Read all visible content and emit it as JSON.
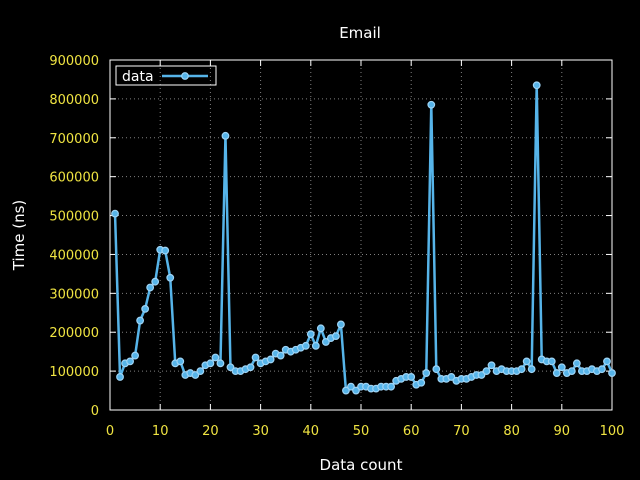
{
  "chart_data": {
    "type": "line",
    "title": "Email",
    "xlabel": "Data count",
    "ylabel": "Time (ns)",
    "xlim": [
      0,
      100
    ],
    "ylim": [
      0,
      900000
    ],
    "x_ticks": [
      0,
      10,
      20,
      30,
      40,
      50,
      60,
      70,
      80,
      90,
      100
    ],
    "y_ticks": [
      0,
      100000,
      200000,
      300000,
      400000,
      500000,
      600000,
      700000,
      800000,
      900000
    ],
    "grid": true,
    "legend_position": "top-left",
    "series": [
      {
        "name": "data",
        "color": "#56b4e9",
        "x": [
          1,
          2,
          3,
          4,
          5,
          6,
          7,
          8,
          9,
          10,
          11,
          12,
          13,
          14,
          15,
          16,
          17,
          18,
          19,
          20,
          21,
          22,
          23,
          24,
          25,
          26,
          27,
          28,
          29,
          30,
          31,
          32,
          33,
          34,
          35,
          36,
          37,
          38,
          39,
          40,
          41,
          42,
          43,
          44,
          45,
          46,
          47,
          48,
          49,
          50,
          51,
          52,
          53,
          54,
          55,
          56,
          57,
          58,
          59,
          60,
          61,
          62,
          63,
          64,
          65,
          66,
          67,
          68,
          69,
          70,
          71,
          72,
          73,
          74,
          75,
          76,
          77,
          78,
          79,
          80,
          81,
          82,
          83,
          84,
          85,
          86,
          87,
          88,
          89,
          90,
          91,
          92,
          93,
          94,
          95,
          96,
          97,
          98,
          99,
          100
        ],
        "y": [
          505000,
          85000,
          120000,
          125000,
          140000,
          230000,
          260000,
          315000,
          330000,
          412000,
          410000,
          340000,
          120000,
          125000,
          90000,
          95000,
          90000,
          100000,
          115000,
          120000,
          135000,
          120000,
          705000,
          110000,
          100000,
          100000,
          105000,
          110000,
          135000,
          120000,
          125000,
          130000,
          145000,
          140000,
          155000,
          150000,
          155000,
          160000,
          165000,
          195000,
          165000,
          210000,
          175000,
          185000,
          190000,
          220000,
          50000,
          60000,
          50000,
          60000,
          60000,
          55000,
          55000,
          60000,
          60000,
          60000,
          75000,
          80000,
          85000,
          85000,
          65000,
          70000,
          95000,
          785000,
          105000,
          80000,
          80000,
          85000,
          75000,
          80000,
          80000,
          85000,
          90000,
          90000,
          100000,
          115000,
          100000,
          105000,
          100000,
          100000,
          100000,
          105000,
          125000,
          105000,
          835000,
          130000,
          125000,
          125000,
          95000,
          110000,
          95000,
          100000,
          120000,
          100000,
          100000,
          105000,
          100000,
          105000,
          125000,
          95000
        ]
      }
    ]
  }
}
